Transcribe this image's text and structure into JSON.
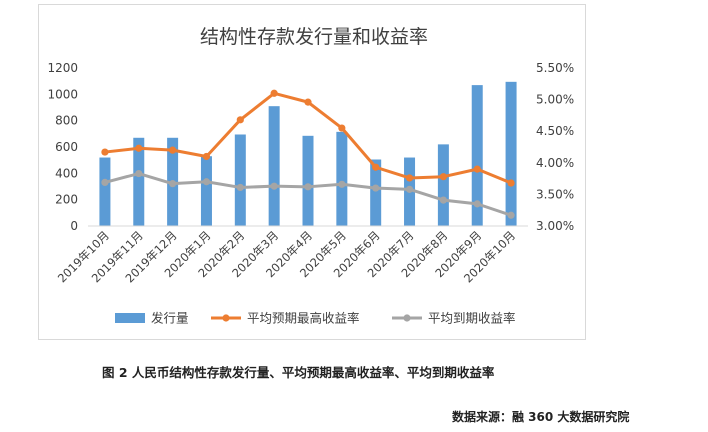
{
  "chart_data": {
    "type": "bar+line",
    "title": "结构性存款发行量和收益率",
    "categories": [
      "2019年10月",
      "2019年11月",
      "2019年12月",
      "2020年1月",
      "2020年2月",
      "2020年3月",
      "2020年4月",
      "2020年5月",
      "2020年6月",
      "2020年7月",
      "2020年8月",
      "2020年9月",
      "2020年10月"
    ],
    "y_left": {
      "min": 0,
      "max": 1200,
      "step": 200,
      "ticks": [
        "0",
        "200",
        "400",
        "600",
        "800",
        "1000",
        "1200"
      ]
    },
    "y_right": {
      "min": 3.0,
      "max": 5.5,
      "step": 0.5,
      "ticks": [
        "3.00%",
        "3.50%",
        "4.00%",
        "4.50%",
        "5.00%",
        "5.50%"
      ]
    },
    "series": [
      {
        "name": "发行量",
        "kind": "bar",
        "axis": "left",
        "color": "#5b9bd5",
        "values": [
          520,
          670,
          670,
          530,
          695,
          910,
          685,
          715,
          505,
          520,
          620,
          1070,
          1095
        ]
      },
      {
        "name": "平均预期最高收益率",
        "kind": "line",
        "axis": "right",
        "color": "#ed7d31",
        "values": [
          4.17,
          4.23,
          4.2,
          4.1,
          4.68,
          5.1,
          4.96,
          4.55,
          3.93,
          3.76,
          3.78,
          3.9,
          3.68
        ]
      },
      {
        "name": "平均到期收益率",
        "kind": "line",
        "axis": "right",
        "color": "#a5a5a5",
        "values": [
          3.69,
          3.83,
          3.67,
          3.7,
          3.61,
          3.63,
          3.62,
          3.66,
          3.6,
          3.58,
          3.41,
          3.35,
          3.17
        ]
      }
    ],
    "legend": "bottom",
    "grid": false
  },
  "caption": "图 2  人民币结构性存款发行量、平均预期最高收益率、平均到期收益率",
  "source": "数据来源：融 360 大数据研究院"
}
